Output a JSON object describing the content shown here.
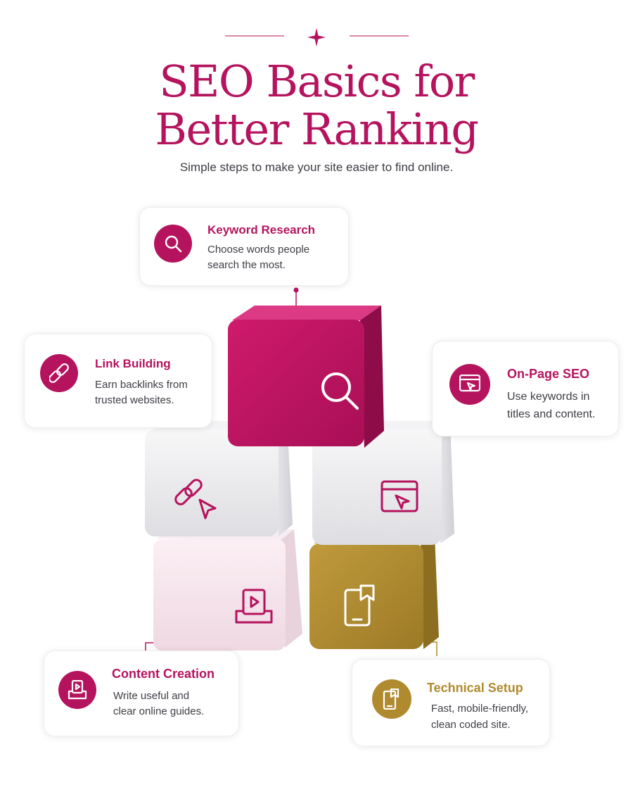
{
  "header": {
    "title_line1": "SEO Basics for",
    "title_line2": "Better Ranking",
    "subtitle": "Simple steps to make your site easier to find online."
  },
  "colors": {
    "brand": "#b5135e",
    "gold": "#b08a2e",
    "text": "#3d3d45"
  },
  "cards": {
    "keyword": {
      "title": "Keyword Research",
      "line1": "Choose words people",
      "line2": "search the most.",
      "icon": "search-icon"
    },
    "link": {
      "title": "Link Building",
      "line1": "Earn backlinks from",
      "line2": "trusted websites.",
      "icon": "link-icon"
    },
    "onpage": {
      "title": "On-Page SEO",
      "line1": "Use keywords in",
      "line2": "titles and content.",
      "icon": "browser-cursor-icon"
    },
    "content": {
      "title": "Content Creation",
      "line1": "Write useful and",
      "line2": "clear online guides.",
      "icon": "video-tray-icon"
    },
    "technical": {
      "title": "Technical Setup",
      "line1": "Fast, mobile-friendly,",
      "line2": "clean coded site.",
      "icon": "mobile-bookmark-icon"
    }
  },
  "cubes": [
    {
      "name": "keyword-cube",
      "icon": "search-icon"
    },
    {
      "name": "link-cube",
      "icon": "link-cursor-icon"
    },
    {
      "name": "onpage-cube",
      "icon": "browser-cursor-icon"
    },
    {
      "name": "content-cube",
      "icon": "video-tray-icon"
    },
    {
      "name": "technical-cube",
      "icon": "mobile-bookmark-icon"
    }
  ]
}
